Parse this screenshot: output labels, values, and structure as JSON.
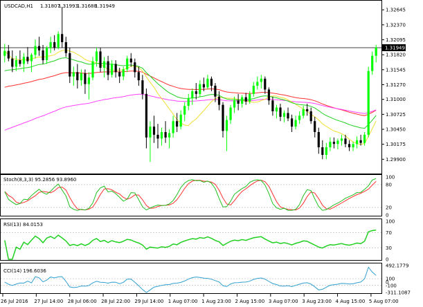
{
  "header": {
    "symbol": "USDCAD,H1",
    "open": "1.31807",
    "high": "1.31993",
    "low": "1.31688",
    "close": "1.31949"
  },
  "indicators": {
    "stoch_label": "Stoch(8,3,3) 95.2856 93.8960",
    "rsi_label": "RSI(13) 84.0153",
    "cci_label": "CCI(14) 196.6036"
  },
  "colors": {
    "bull": "#00ff00",
    "bear": "#000000",
    "ma_red": "#ff3030",
    "ma_magenta": "#ff40ff",
    "ma_yellow": "#f0e030",
    "ma_green": "#20d020",
    "stoch_main": "#20c020",
    "stoch_signal": "#ff3030",
    "rsi": "#20d020",
    "cci": "#30a0d0",
    "price_line": "#000000"
  },
  "chart_data": [
    {
      "type": "candlestick",
      "pane": "price",
      "symbol": "USDCAD,H1",
      "ylim": [
        1.2965,
        1.328
      ],
      "y_ticks": [
        "1.32645",
        "1.32370",
        "1.32095",
        "1.31820",
        "1.31545",
        "1.31270",
        "1.31000",
        "1.30725",
        "1.30450",
        "1.30175",
        "1.29900"
      ],
      "current_price": "1.31949",
      "ohlc": [
        [
          1.318,
          1.3202,
          1.3168,
          1.3189
        ],
        [
          1.3189,
          1.32,
          1.317,
          1.3175
        ],
        [
          1.3175,
          1.319,
          1.315,
          1.316
        ],
        [
          1.316,
          1.318,
          1.3152,
          1.3172
        ],
        [
          1.3172,
          1.319,
          1.316,
          1.3165
        ],
        [
          1.3165,
          1.3185,
          1.315,
          1.3178
        ],
        [
          1.3178,
          1.3196,
          1.3165,
          1.317
        ],
        [
          1.317,
          1.3185,
          1.315,
          1.3182
        ],
        [
          1.3182,
          1.321,
          1.3175,
          1.3198
        ],
        [
          1.3198,
          1.3215,
          1.318,
          1.319
        ],
        [
          1.319,
          1.32,
          1.3165,
          1.3172
        ],
        [
          1.3172,
          1.3198,
          1.3165,
          1.3195
        ],
        [
          1.3195,
          1.3215,
          1.3185,
          1.3205
        ],
        [
          1.3205,
          1.3218,
          1.319,
          1.3195
        ],
        [
          1.3195,
          1.3225,
          1.3192,
          1.322
        ],
        [
          1.322,
          1.327,
          1.3195,
          1.3205
        ],
        [
          1.3205,
          1.3215,
          1.3178,
          1.3185
        ],
        [
          1.3185,
          1.3195,
          1.313,
          1.3142
        ],
        [
          1.3142,
          1.316,
          1.3125,
          1.315
        ],
        [
          1.315,
          1.3165,
          1.312,
          1.3135
        ],
        [
          1.3135,
          1.3155,
          1.3125,
          1.3148
        ],
        [
          1.3148,
          1.3155,
          1.311,
          1.3128
        ],
        [
          1.3128,
          1.315,
          1.31,
          1.314
        ],
        [
          1.314,
          1.3178,
          1.3135,
          1.317
        ],
        [
          1.317,
          1.3195,
          1.316,
          1.3188
        ],
        [
          1.3188,
          1.3195,
          1.315,
          1.3158
        ],
        [
          1.3158,
          1.3178,
          1.314,
          1.317
        ],
        [
          1.317,
          1.318,
          1.3135,
          1.3145
        ],
        [
          1.3145,
          1.3172,
          1.314,
          1.3165
        ],
        [
          1.3165,
          1.3172,
          1.314,
          1.315
        ],
        [
          1.315,
          1.3158,
          1.313,
          1.3142
        ],
        [
          1.3142,
          1.316,
          1.3135,
          1.3155
        ],
        [
          1.3155,
          1.318,
          1.315,
          1.3175
        ],
        [
          1.3175,
          1.3185,
          1.316,
          1.3168
        ],
        [
          1.3168,
          1.3175,
          1.314,
          1.315
        ],
        [
          1.315,
          1.316,
          1.3125,
          1.3135
        ],
        [
          1.3135,
          1.3145,
          1.31,
          1.311
        ],
        [
          1.311,
          1.312,
          1.301,
          1.303
        ],
        [
          1.303,
          1.306,
          1.2985,
          1.305
        ],
        [
          1.305,
          1.307,
          1.302,
          1.3035
        ],
        [
          1.3035,
          1.3055,
          1.301,
          1.3028
        ],
        [
          1.3028,
          1.3048,
          1.3015,
          1.304
        ],
        [
          1.304,
          1.306,
          1.302,
          1.303
        ],
        [
          1.303,
          1.3045,
          1.301,
          1.3038
        ],
        [
          1.3038,
          1.307,
          1.303,
          1.306
        ],
        [
          1.306,
          1.3075,
          1.304,
          1.305
        ],
        [
          1.305,
          1.308,
          1.3045,
          1.3072
        ],
        [
          1.3072,
          1.3095,
          1.306,
          1.3088
        ],
        [
          1.3088,
          1.311,
          1.308,
          1.3102
        ],
        [
          1.3102,
          1.312,
          1.309,
          1.3115
        ],
        [
          1.3115,
          1.313,
          1.31,
          1.311
        ],
        [
          1.311,
          1.3135,
          1.3105,
          1.3128
        ],
        [
          1.3128,
          1.314,
          1.3115,
          1.3122
        ],
        [
          1.3122,
          1.3145,
          1.3118,
          1.3138
        ],
        [
          1.3138,
          1.3142,
          1.3115,
          1.3125
        ],
        [
          1.3125,
          1.313,
          1.3095,
          1.3105
        ],
        [
          1.3105,
          1.3115,
          1.308,
          1.309
        ],
        [
          1.309,
          1.3095,
          1.303,
          1.3042
        ],
        [
          1.3042,
          1.307,
          1.3005,
          1.3062
        ],
        [
          1.3062,
          1.309,
          1.3055,
          1.3085
        ],
        [
          1.3085,
          1.3105,
          1.3075,
          1.3098
        ],
        [
          1.3098,
          1.311,
          1.308,
          1.3092
        ],
        [
          1.3092,
          1.3108,
          1.3085,
          1.3104
        ],
        [
          1.3104,
          1.3112,
          1.309,
          1.3096
        ],
        [
          1.3096,
          1.3115,
          1.3092,
          1.311
        ],
        [
          1.311,
          1.3132,
          1.3105,
          1.3125
        ],
        [
          1.3125,
          1.3142,
          1.3118,
          1.3132
        ],
        [
          1.3132,
          1.3145,
          1.312,
          1.3138
        ],
        [
          1.3138,
          1.3142,
          1.311,
          1.3118
        ],
        [
          1.3118,
          1.3122,
          1.309,
          1.3098
        ],
        [
          1.3098,
          1.3105,
          1.307,
          1.3078
        ],
        [
          1.3078,
          1.309,
          1.3065,
          1.3085
        ],
        [
          1.3085,
          1.3092,
          1.306,
          1.3068
        ],
        [
          1.3068,
          1.308,
          1.3058,
          1.3075
        ],
        [
          1.3075,
          1.3085,
          1.306,
          1.3065
        ],
        [
          1.3065,
          1.3072,
          1.304,
          1.305
        ],
        [
          1.305,
          1.307,
          1.3045,
          1.3062
        ],
        [
          1.3062,
          1.3078,
          1.3055,
          1.307
        ],
        [
          1.307,
          1.3088,
          1.3065,
          1.3082
        ],
        [
          1.3082,
          1.3092,
          1.307,
          1.3078
        ],
        [
          1.3078,
          1.3085,
          1.3055,
          1.306
        ],
        [
          1.306,
          1.3068,
          1.303,
          1.304
        ],
        [
          1.304,
          1.3048,
          1.3,
          1.3012
        ],
        [
          1.3012,
          1.3025,
          1.299,
          1.2998
        ],
        [
          1.2998,
          1.302,
          1.299,
          1.3012
        ],
        [
          1.3012,
          1.303,
          1.3005,
          1.3022
        ],
        [
          1.3022,
          1.303,
          1.301,
          1.3018
        ],
        [
          1.3018,
          1.3028,
          1.3008,
          1.3024
        ],
        [
          1.3024,
          1.3035,
          1.3015,
          1.3028
        ],
        [
          1.3028,
          1.3035,
          1.3012,
          1.3018
        ],
        [
          1.3018,
          1.3025,
          1.3005,
          1.3012
        ],
        [
          1.3012,
          1.3022,
          1.3005,
          1.3018
        ],
        [
          1.3018,
          1.3032,
          1.301,
          1.3025
        ],
        [
          1.3025,
          1.3035,
          1.3015,
          1.302
        ],
        [
          1.302,
          1.304,
          1.3015,
          1.3035
        ],
        [
          1.3035,
          1.316,
          1.303,
          1.3152
        ],
        [
          1.3152,
          1.3188,
          1.3145,
          1.318
        ],
        [
          1.318,
          1.32,
          1.3168,
          1.3195
        ]
      ]
    },
    {
      "type": "line",
      "pane": "stochastic",
      "y_ticks": [
        "100",
        "80",
        "20",
        "0"
      ],
      "ylim": [
        0,
        100
      ]
    },
    {
      "type": "line",
      "pane": "rsi",
      "y_ticks": [
        "100",
        "70",
        "30",
        "0"
      ],
      "ylim": [
        0,
        100
      ]
    },
    {
      "type": "line",
      "pane": "cci",
      "y_ticks": [
        "492.1779",
        "100",
        "0",
        "-100",
        "-311.1087"
      ],
      "ylim": [
        -311.1087,
        492.1779
      ]
    }
  ],
  "x_axis": {
    "labels": [
      "26 Jul 2016",
      "27 Jul 14:00",
      "28 Jul 06:00",
      "28 Jul 22:00",
      "29 Jul 14:00",
      "1 Aug 07:00",
      "1 Aug 23:00",
      "2 Aug 15:00",
      "3 Aug 07:00",
      "3 Aug 23:00",
      "4 Aug 15:00",
      "5 Aug 07:00"
    ]
  }
}
